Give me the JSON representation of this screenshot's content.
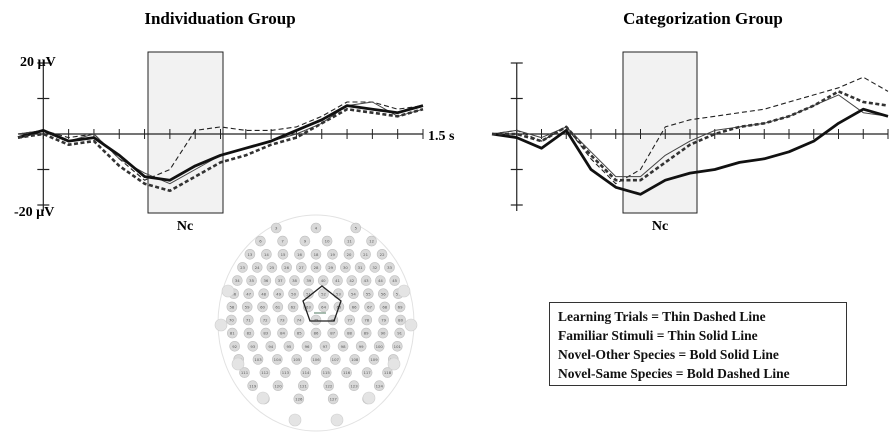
{
  "chart_data": [
    {
      "type": "line",
      "title": "Individuation Group",
      "x_unit": "s",
      "y_unit": "µV",
      "xlim": [
        -0.1,
        1.5
      ],
      "ylim": [
        -20,
        20
      ],
      "y_tick_labels": {
        "top": "20 µV",
        "bottom": "-20 µV"
      },
      "x_end_label": "1.5 s",
      "window_label": "Nc",
      "window": [
        0.2,
        0.6
      ],
      "x": [
        -0.1,
        0.0,
        0.1,
        0.2,
        0.3,
        0.4,
        0.5,
        0.6,
        0.7,
        0.8,
        0.9,
        1.0,
        1.1,
        1.2,
        1.3,
        1.4,
        1.5
      ],
      "series": [
        {
          "key": "learning",
          "values": [
            0,
            1,
            -1,
            0,
            -7,
            -13,
            -10,
            1,
            2,
            1,
            1,
            2,
            5,
            9,
            9,
            7,
            8
          ]
        },
        {
          "key": "familiar",
          "values": [
            0,
            1,
            -2,
            0,
            -7,
            -11,
            -14,
            -10,
            -6,
            -4,
            -2,
            0,
            3,
            8,
            9,
            5,
            7
          ]
        },
        {
          "key": "novel_other",
          "values": [
            -1,
            1,
            -2,
            -1,
            -6,
            -12,
            -13,
            -9,
            -6,
            -4,
            -2,
            1,
            4,
            8,
            7,
            6,
            8
          ]
        },
        {
          "key": "novel_same",
          "values": [
            -1,
            0,
            -3,
            -2,
            -9,
            -14,
            -16,
            -12,
            -8,
            -6,
            -3,
            -1,
            3,
            7,
            6,
            5,
            7
          ]
        }
      ]
    },
    {
      "type": "line",
      "title": "Categorization Group",
      "x_unit": "s",
      "y_unit": "µV",
      "xlim": [
        -0.1,
        1.5
      ],
      "ylim": [
        -20,
        20
      ],
      "window_label": "Nc",
      "window": [
        0.2,
        0.6
      ],
      "x": [
        -0.1,
        0.0,
        0.1,
        0.2,
        0.3,
        0.4,
        0.5,
        0.6,
        0.7,
        0.8,
        0.9,
        1.0,
        1.1,
        1.2,
        1.3,
        1.4,
        1.5
      ],
      "series": [
        {
          "key": "learning",
          "values": [
            0,
            1,
            -2,
            2,
            -7,
            -14,
            -10,
            2,
            4,
            5,
            6,
            7,
            9,
            11,
            13,
            16,
            12
          ]
        },
        {
          "key": "familiar",
          "values": [
            0,
            1,
            -1,
            2,
            -5,
            -12,
            -12,
            -6,
            -2,
            1,
            2,
            3,
            5,
            8,
            11,
            6,
            5
          ]
        },
        {
          "key": "novel_other",
          "values": [
            0,
            -1,
            -4,
            1,
            -10,
            -15,
            -17,
            -13,
            -11,
            -10,
            -8,
            -7,
            -5,
            -2,
            3,
            7,
            5
          ]
        },
        {
          "key": "novel_same",
          "values": [
            0,
            0,
            -2,
            2,
            -6,
            -13,
            -13,
            -8,
            -3,
            0,
            2,
            3,
            5,
            8,
            12,
            9,
            8
          ]
        }
      ]
    }
  ],
  "legend": {
    "lines": [
      "Learning Trials = Thin Dashed Line",
      "Familiar Stimuli = Thin Solid Line",
      "Novel-Other Species = Bold Solid Line",
      "Novel-Same Species = Bold Dashed Line"
    ]
  },
  "electrode_map": {
    "labels": [
      "3",
      "4",
      "5",
      "6",
      "7",
      "9",
      "10",
      "11",
      "12",
      "13",
      "14",
      "15",
      "16",
      "18",
      "19",
      "20",
      "21",
      "22",
      "23",
      "24",
      "25",
      "26",
      "27",
      "28",
      "29",
      "30",
      "31",
      "32",
      "33",
      "34",
      "35",
      "36",
      "37",
      "38",
      "39",
      "40",
      "41",
      "42",
      "43",
      "44",
      "45",
      "46",
      "47",
      "48",
      "49",
      "50",
      "51",
      "52",
      "53",
      "54",
      "55",
      "56",
      "57",
      "58",
      "59",
      "60",
      "61",
      "62",
      "63",
      "64",
      "65",
      "66",
      "67",
      "68",
      "69",
      "70",
      "71",
      "72",
      "73",
      "74",
      "75",
      "76",
      "77",
      "78",
      "79",
      "80",
      "81",
      "82",
      "83",
      "84",
      "85",
      "86",
      "87",
      "88",
      "89",
      "90",
      "91",
      "92",
      "93",
      "94",
      "95",
      "96",
      "97",
      "98",
      "99",
      "100",
      "101",
      "102",
      "103",
      "104",
      "105",
      "106",
      "107",
      "108",
      "109",
      "110",
      "111",
      "112",
      "113",
      "114",
      "115",
      "116",
      "117",
      "118",
      "119",
      "120",
      "121",
      "122",
      "123",
      "124",
      "125",
      "126",
      "127",
      "128"
    ],
    "colors": {
      "fill": "#d9d9d9",
      "stroke": "#bfbfbf",
      "outline": "#222222",
      "highlight": "#6e8f7b"
    }
  },
  "colors": {
    "trace": "#111111",
    "trace_bold": "#1a1a1a",
    "trace_gray": "#555555",
    "window_fill": "#f2f2f2"
  }
}
